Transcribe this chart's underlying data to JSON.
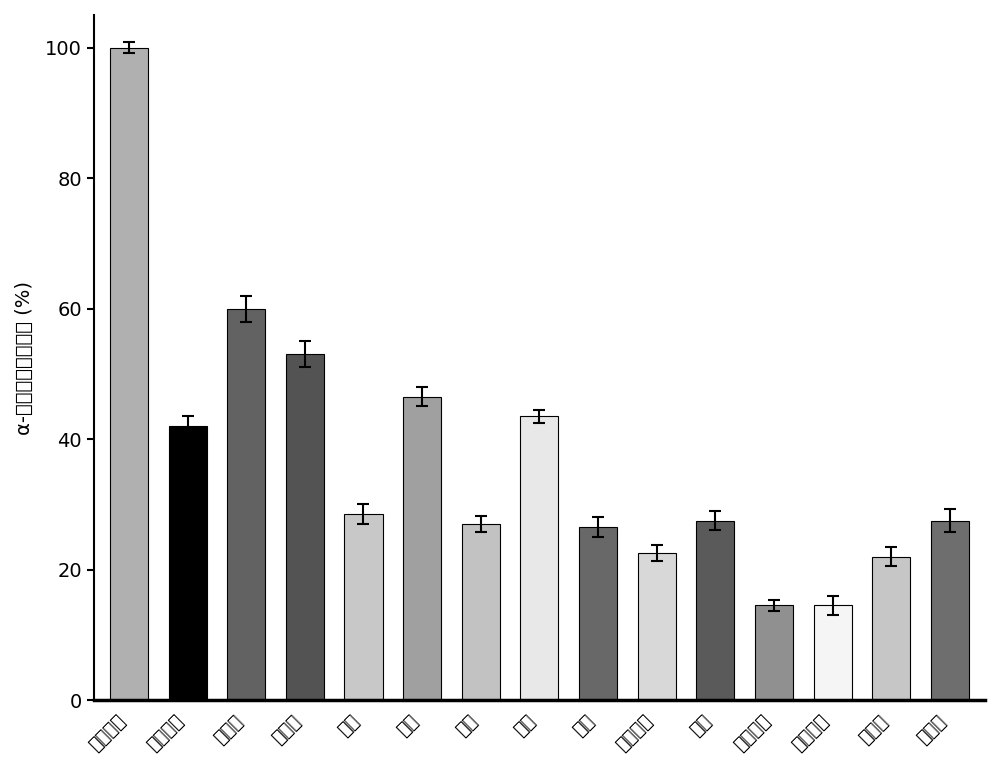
{
  "categories": [
    "阿卡波糖",
    "温州蜜柑",
    "茶枝柑",
    "不知火",
    "椪柑",
    "沃柑",
    "胡柚",
    "柠檬",
    "血橙",
    "伦晚脐橙",
    "佛手",
    "龙岩金柑",
    "遂川金柑",
    "苹果柚",
    "马家柚"
  ],
  "values": [
    100.0,
    42.0,
    60.0,
    53.0,
    28.5,
    46.5,
    27.0,
    43.5,
    26.5,
    22.5,
    27.5,
    14.5,
    14.5,
    22.0,
    27.5
  ],
  "errors": [
    0.8,
    1.5,
    2.0,
    2.0,
    1.5,
    1.5,
    1.2,
    1.0,
    1.5,
    1.2,
    1.5,
    0.8,
    1.5,
    1.5,
    1.8
  ],
  "bar_colors": [
    "#b0b0b0",
    "#000000",
    "#626262",
    "#535353",
    "#c8c8c8",
    "#a0a0a0",
    "#c2c2c2",
    "#e8e8e8",
    "#686868",
    "#d8d8d8",
    "#5a5a5a",
    "#909090",
    "#f5f5f5",
    "#c6c6c6",
    "#6e6e6e"
  ],
  "ylabel": "α-葡萄糖苷酶抑制率 (%)",
  "ylim": [
    0,
    105
  ],
  "yticks": [
    0,
    20,
    40,
    60,
    80,
    100
  ],
  "bar_width": 0.65,
  "xlabel_fontsize": 13,
  "ylabel_fontsize": 14,
  "tick_fontsize": 14
}
